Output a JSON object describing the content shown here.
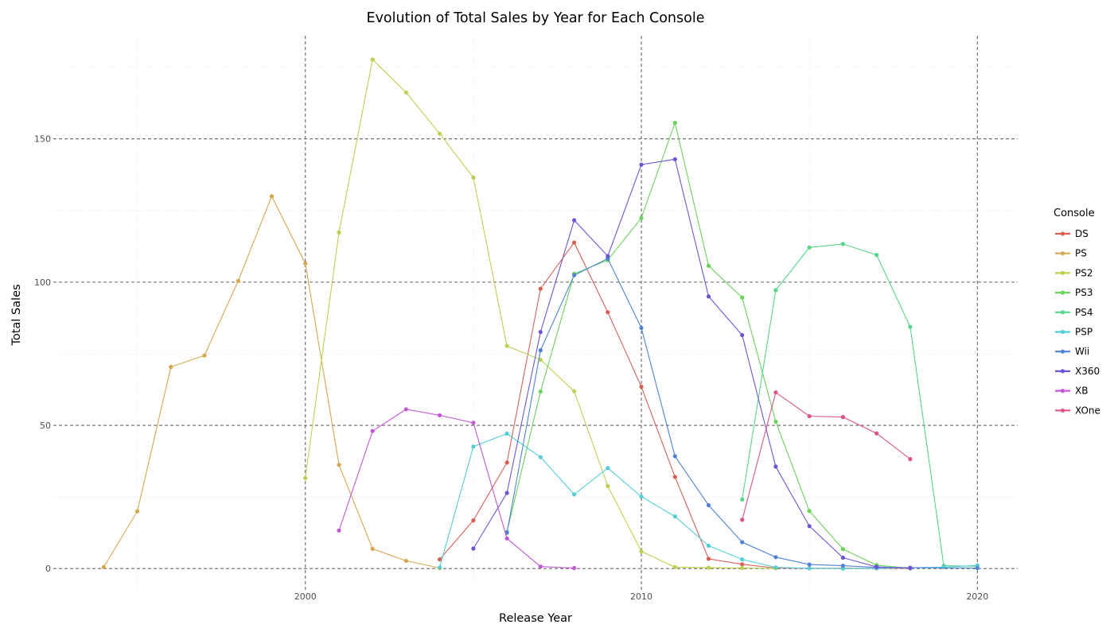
{
  "chart_data": {
    "type": "line",
    "title": "Evolution of Total Sales by Year for Each Console",
    "xlabel": "Release Year",
    "ylabel": "Total Sales",
    "xlim": [
      1992.5,
      2021.2
    ],
    "ylim": [
      -8,
      186
    ],
    "x_ticks": [
      2000,
      2010,
      2020
    ],
    "y_ticks": [
      0,
      50,
      100,
      150
    ],
    "grid": true,
    "legend_title": "Console",
    "legend_position": "right",
    "series": [
      {
        "name": "DS",
        "color": "#d95f55",
        "points": [
          [
            2004,
            3.2
          ],
          [
            2005,
            16.8
          ],
          [
            2006,
            37.0
          ],
          [
            2007,
            97.7
          ],
          [
            2008,
            113.8
          ],
          [
            2009,
            89.5
          ],
          [
            2010,
            63.5
          ],
          [
            2011,
            32.0
          ],
          [
            2012,
            3.4
          ],
          [
            2013,
            1.5
          ],
          [
            2014,
            0.2
          ],
          [
            2015,
            0.1
          ],
          [
            2016,
            0.1
          ],
          [
            2017,
            0.1
          ],
          [
            2018,
            0.1
          ]
        ]
      },
      {
        "name": "PS",
        "color": "#d4a84f",
        "points": [
          [
            1994,
            0.5
          ],
          [
            1995,
            20.0
          ],
          [
            1996,
            70.4
          ],
          [
            1997,
            74.4
          ],
          [
            1998,
            100.4
          ],
          [
            1999,
            130.0
          ],
          [
            2000,
            106.5
          ],
          [
            2001,
            36.2
          ],
          [
            2002,
            6.9
          ],
          [
            2003,
            2.7
          ],
          [
            2004,
            0.2
          ]
        ]
      },
      {
        "name": "PS2",
        "color": "#b8d44e",
        "points": [
          [
            2000,
            31.6
          ],
          [
            2001,
            117.3
          ],
          [
            2002,
            177.7
          ],
          [
            2003,
            166.2
          ],
          [
            2004,
            151.8
          ],
          [
            2005,
            136.5
          ],
          [
            2006,
            77.7
          ],
          [
            2007,
            72.9
          ],
          [
            2008,
            61.9
          ],
          [
            2009,
            28.8
          ],
          [
            2010,
            6.0
          ],
          [
            2011,
            0.5
          ],
          [
            2012,
            0.3
          ],
          [
            2013,
            0.2
          ],
          [
            2014,
            0.1
          ]
        ]
      },
      {
        "name": "PS3",
        "color": "#6ad45a",
        "points": [
          [
            2006,
            12.8
          ],
          [
            2007,
            61.8
          ],
          [
            2008,
            102.9
          ],
          [
            2009,
            107.7
          ],
          [
            2010,
            122.4
          ],
          [
            2011,
            155.6
          ],
          [
            2012,
            105.7
          ],
          [
            2013,
            94.6
          ],
          [
            2014,
            51.3
          ],
          [
            2015,
            20.1
          ],
          [
            2016,
            6.8
          ],
          [
            2017,
            1.2
          ],
          [
            2018,
            0.1
          ]
        ]
      },
      {
        "name": "PS4",
        "color": "#55d68a",
        "points": [
          [
            2013,
            24.1
          ],
          [
            2014,
            97.2
          ],
          [
            2015,
            112.1
          ],
          [
            2016,
            113.3
          ],
          [
            2017,
            109.5
          ],
          [
            2018,
            84.4
          ],
          [
            2019,
            1.0
          ],
          [
            2020,
            0.8
          ]
        ]
      },
      {
        "name": "PSP",
        "color": "#52cfd6",
        "points": [
          [
            2004,
            0.4
          ],
          [
            2005,
            42.6
          ],
          [
            2006,
            47.1
          ],
          [
            2007,
            38.9
          ],
          [
            2008,
            25.9
          ],
          [
            2009,
            35.1
          ],
          [
            2010,
            25.1
          ],
          [
            2011,
            18.2
          ],
          [
            2012,
            8.0
          ],
          [
            2013,
            3.2
          ],
          [
            2014,
            0.4
          ],
          [
            2015,
            0.1
          ],
          [
            2016,
            0.0
          ],
          [
            2017,
            0.1
          ],
          [
            2018,
            0.3
          ],
          [
            2019,
            0.5
          ],
          [
            2020,
            1.1
          ]
        ]
      },
      {
        "name": "Wii",
        "color": "#4f83d6",
        "points": [
          [
            2006,
            12.5
          ],
          [
            2007,
            76.2
          ],
          [
            2008,
            102.4
          ],
          [
            2009,
            108.2
          ],
          [
            2010,
            84.0
          ],
          [
            2011,
            39.2
          ],
          [
            2012,
            22.1
          ],
          [
            2013,
            9.2
          ],
          [
            2014,
            4.0
          ],
          [
            2015,
            1.4
          ],
          [
            2016,
            1.0
          ],
          [
            2017,
            0.4
          ],
          [
            2018,
            0.3
          ],
          [
            2020,
            0.2
          ]
        ]
      },
      {
        "name": "X360",
        "color": "#6e55d6",
        "points": [
          [
            2005,
            7.0
          ],
          [
            2006,
            26.4
          ],
          [
            2007,
            82.6
          ],
          [
            2008,
            121.6
          ],
          [
            2009,
            109.1
          ],
          [
            2010,
            141.0
          ],
          [
            2011,
            142.9
          ],
          [
            2012,
            95.0
          ],
          [
            2013,
            81.5
          ],
          [
            2014,
            35.6
          ],
          [
            2015,
            14.8
          ],
          [
            2016,
            3.8
          ],
          [
            2017,
            0.6
          ],
          [
            2018,
            0.2
          ]
        ]
      },
      {
        "name": "XB",
        "color": "#c357d6",
        "points": [
          [
            2001,
            13.3
          ],
          [
            2002,
            48.0
          ],
          [
            2003,
            55.6
          ],
          [
            2004,
            53.5
          ],
          [
            2005,
            50.9
          ],
          [
            2006,
            10.5
          ],
          [
            2007,
            0.7
          ],
          [
            2008,
            0.2
          ]
        ]
      },
      {
        "name": "XOne",
        "color": "#dc5489",
        "points": [
          [
            2013,
            17.0
          ],
          [
            2014,
            61.5
          ],
          [
            2015,
            53.2
          ],
          [
            2016,
            52.9
          ],
          [
            2017,
            47.2
          ],
          [
            2018,
            38.2
          ]
        ]
      }
    ]
  }
}
